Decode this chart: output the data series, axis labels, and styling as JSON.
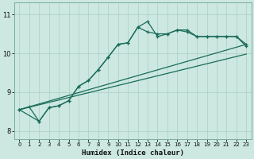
{
  "xlabel": "Humidex (Indice chaleur)",
  "bg_color": "#cce8e0",
  "plot_bg": "#cce8e0",
  "grid_color": "#aacfc8",
  "line_color": "#1a6b5a",
  "spine_color": "#7aada0",
  "xlim": [
    -0.5,
    23.5
  ],
  "ylim": [
    7.8,
    11.3
  ],
  "xticks": [
    0,
    1,
    2,
    3,
    4,
    5,
    6,
    7,
    8,
    9,
    10,
    11,
    12,
    13,
    14,
    15,
    16,
    17,
    18,
    19,
    20,
    21,
    22,
    23
  ],
  "yticks": [
    8,
    9,
    10,
    11
  ],
  "xlabel_fontsize": 6.5,
  "tick_fontsize": 5.0,
  "lw": 0.9,
  "ms": 2.5,
  "curve1_x": [
    0,
    1,
    2,
    3,
    4,
    5,
    6,
    7,
    8,
    9,
    10,
    11,
    12,
    13,
    14,
    15,
    16,
    17,
    18,
    19,
    20,
    21,
    22,
    23
  ],
  "curve1_y": [
    8.55,
    8.62,
    8.25,
    8.6,
    8.65,
    8.78,
    9.15,
    9.3,
    9.58,
    9.9,
    10.23,
    10.27,
    10.67,
    10.82,
    10.43,
    10.5,
    10.6,
    10.55,
    10.43,
    10.43,
    10.43,
    10.43,
    10.43,
    10.23
  ],
  "curve2_x": [
    0,
    2,
    3,
    4,
    5,
    6,
    7,
    8,
    9,
    10,
    11,
    12,
    13,
    14,
    15,
    16,
    17,
    18,
    19,
    20,
    21,
    22,
    23
  ],
  "curve2_y": [
    8.55,
    8.25,
    8.6,
    8.65,
    8.78,
    9.15,
    9.3,
    9.58,
    9.9,
    10.23,
    10.27,
    10.67,
    10.55,
    10.5,
    10.5,
    10.6,
    10.6,
    10.43,
    10.43,
    10.43,
    10.43,
    10.43,
    10.18
  ],
  "line1_x": [
    0,
    23
  ],
  "line1_y": [
    8.55,
    10.23
  ],
  "line2_x": [
    0,
    23
  ],
  "line2_y": [
    8.55,
    9.98
  ]
}
